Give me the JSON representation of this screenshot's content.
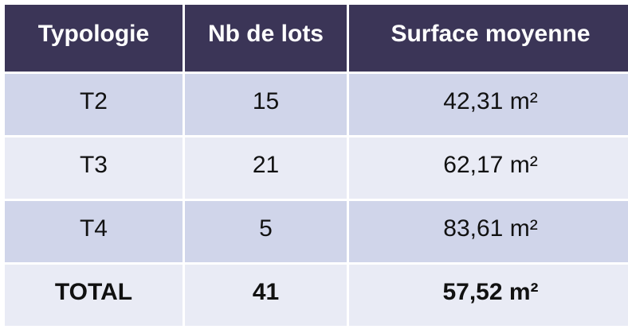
{
  "table": {
    "headers": [
      "Typologie",
      "Nb de lots",
      "Surface moyenne"
    ],
    "rows": [
      {
        "typologie": "T2",
        "lots": "15",
        "surface": "42,31 m²"
      },
      {
        "typologie": "T3",
        "lots": "21",
        "surface": "62,17 m²"
      },
      {
        "typologie": "T4",
        "lots": "5",
        "surface": "83,61 m²"
      }
    ],
    "total": {
      "typologie": "TOTAL",
      "lots": "41",
      "surface": "57,52 m²"
    }
  },
  "colors": {
    "header_bg": "#3b3557",
    "header_text": "#ffffff",
    "row_dark": "#d0d5ea",
    "row_light": "#e9ebf5"
  }
}
